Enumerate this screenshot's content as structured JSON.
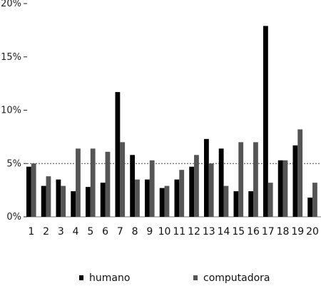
{
  "chart_data": {
    "type": "bar",
    "categories": [
      "1",
      "2",
      "3",
      "4",
      "5",
      "6",
      "7",
      "8",
      "9",
      "10",
      "11",
      "12",
      "13",
      "14",
      "15",
      "16",
      "17",
      "18",
      "19",
      "20"
    ],
    "series": [
      {
        "name": "humano",
        "color": "#000000",
        "values": [
          4.7,
          2.9,
          3.5,
          2.4,
          2.8,
          3.2,
          11.7,
          5.8,
          3.5,
          2.7,
          3.5,
          4.7,
          7.3,
          6.4,
          2.4,
          2.4,
          17.9,
          5.3,
          6.7,
          1.8
        ]
      },
      {
        "name": "computadora",
        "color": "#555555",
        "values": [
          5.0,
          3.8,
          2.9,
          6.4,
          6.4,
          6.1,
          7.0,
          3.5,
          5.3,
          2.9,
          4.4,
          5.8,
          5.0,
          2.9,
          7.0,
          7.0,
          3.2,
          5.3,
          8.2,
          3.2
        ]
      }
    ],
    "y_ticks": [
      0,
      5,
      10,
      15,
      20
    ],
    "y_tick_labels": [
      "0%",
      "5%",
      "10%",
      "15%",
      "20%"
    ],
    "ylim": [
      0,
      20
    ],
    "reference_line": 5,
    "title": "",
    "xlabel": "",
    "ylabel": "",
    "legend_position": "bottom"
  }
}
